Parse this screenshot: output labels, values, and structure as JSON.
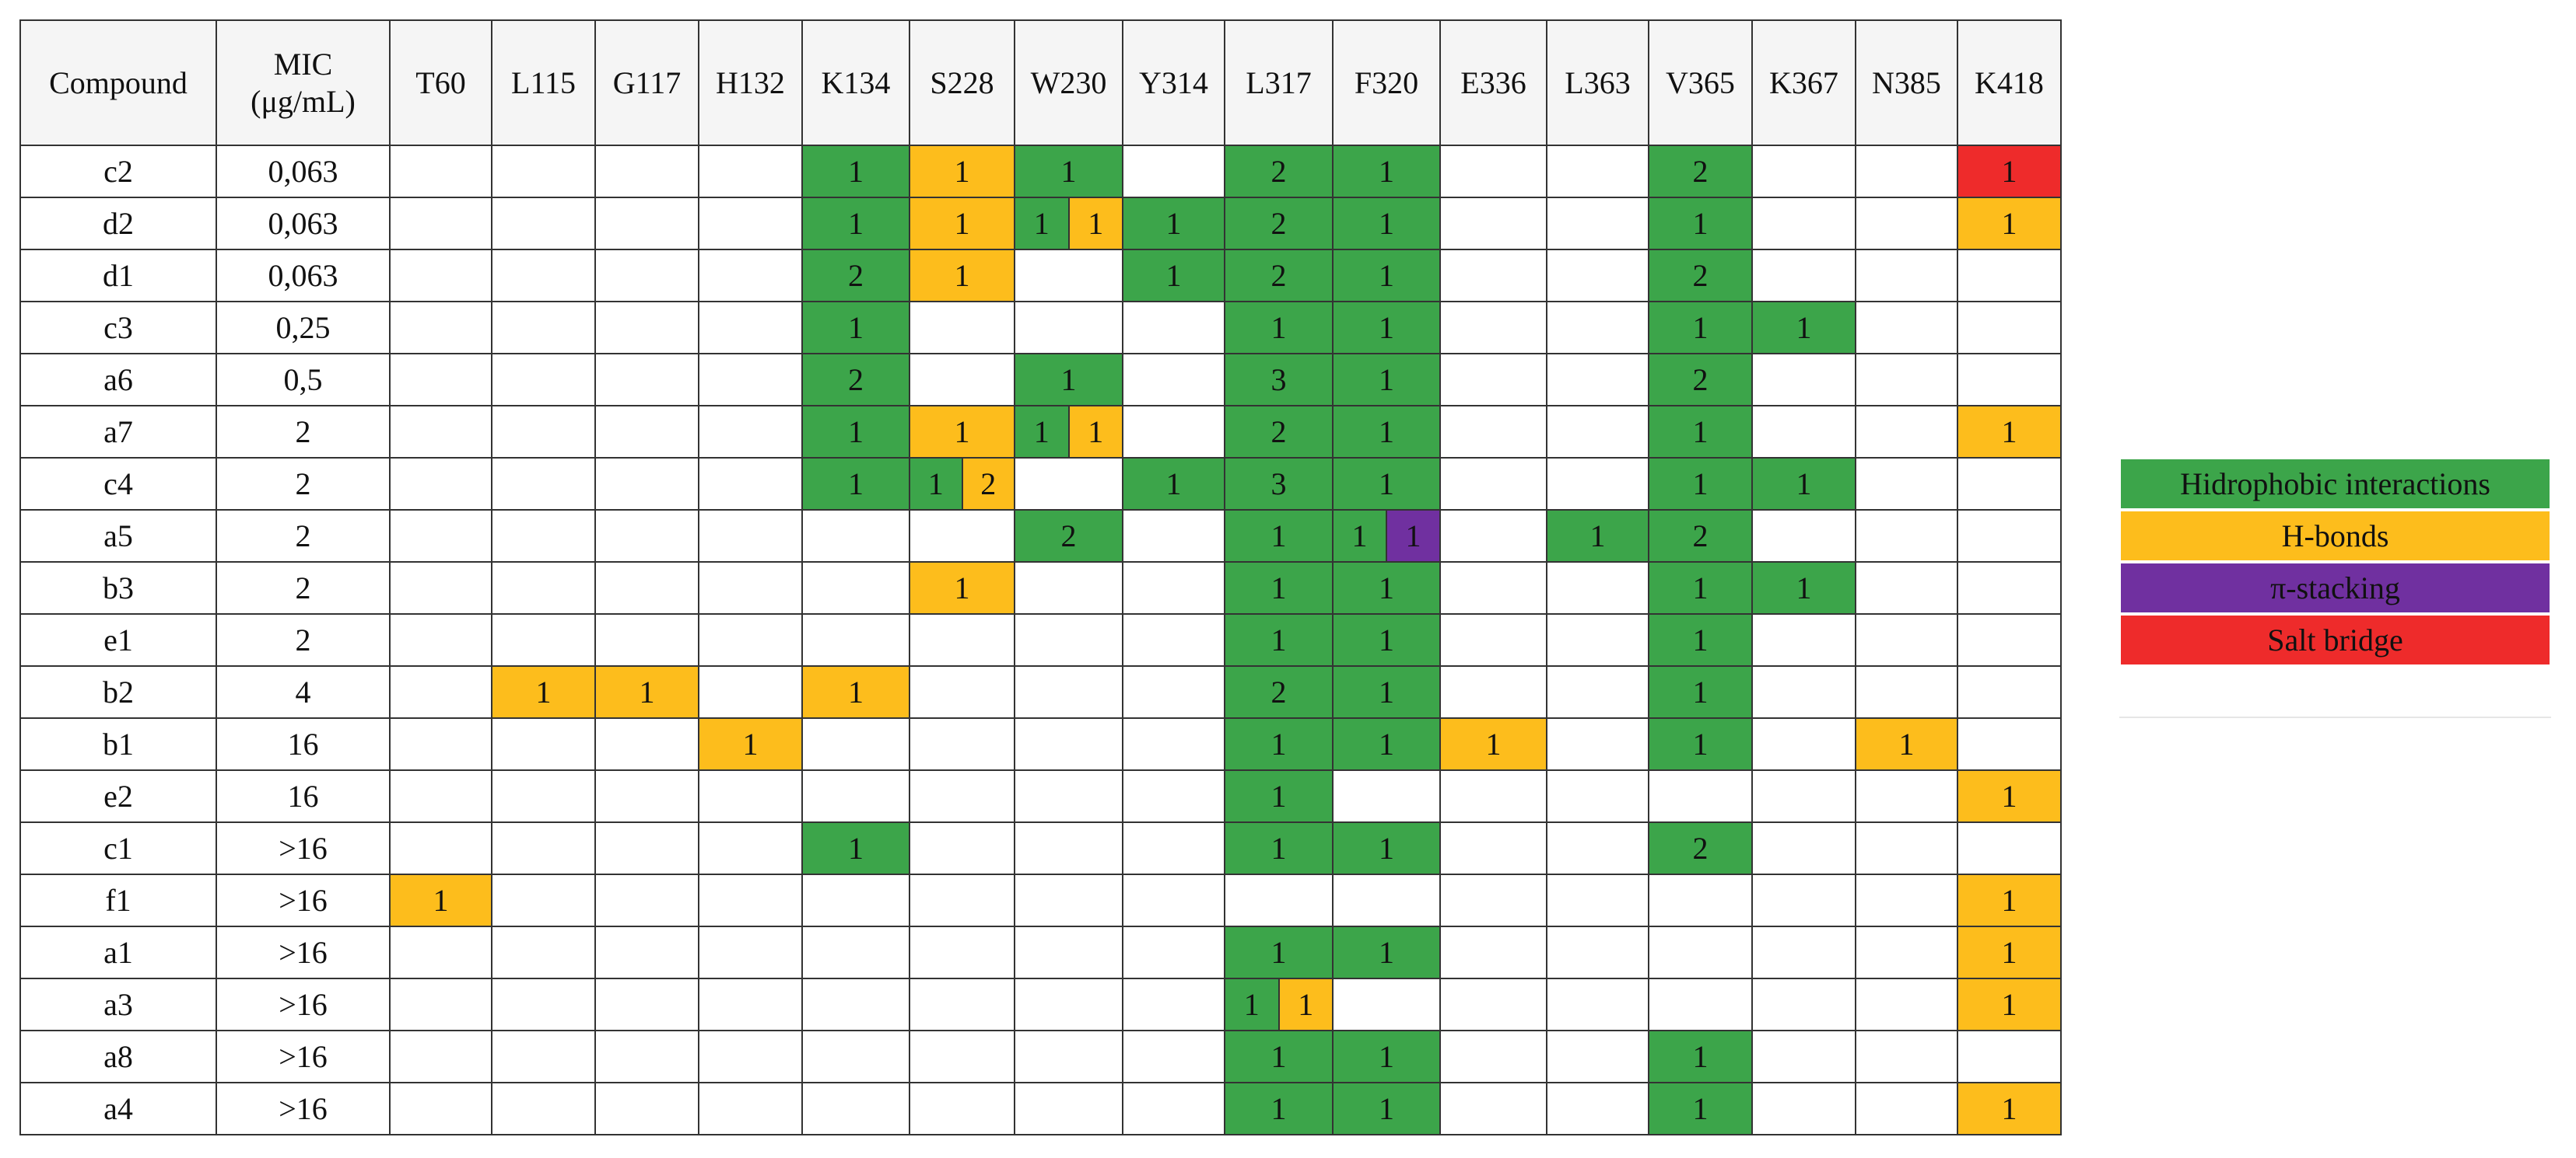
{
  "table": {
    "headers": [
      "Compound",
      "MIC (μg/mL)",
      "T60",
      "L115",
      "G117",
      "H132",
      "K134",
      "S228",
      "W230",
      "Y314",
      "L317",
      "F320",
      "E336",
      "L363",
      "V365",
      "K367",
      "N385",
      "K418"
    ],
    "rows": [
      {
        "compound": "c2",
        "mic": "0,063",
        "cells": [
          null,
          null,
          null,
          null,
          [
            [
              1,
              "#3ca54a"
            ]
          ],
          [
            [
              1,
              "#fdbd1c"
            ]
          ],
          [
            [
              1,
              "#3ca54a"
            ]
          ],
          null,
          [
            [
              2,
              "#3ca54a"
            ]
          ],
          [
            [
              1,
              "#3ca54a"
            ]
          ],
          null,
          null,
          [
            [
              2,
              "#3ca54a"
            ]
          ],
          null,
          null,
          [
            [
              1,
              "#ee2b2b"
            ]
          ]
        ]
      },
      {
        "compound": "d2",
        "mic": "0,063",
        "cells": [
          null,
          null,
          null,
          null,
          [
            [
              1,
              "#3ca54a"
            ]
          ],
          [
            [
              1,
              "#fdbd1c"
            ]
          ],
          [
            [
              1,
              "#3ca54a"
            ],
            [
              1,
              "#fdbd1c"
            ]
          ],
          [
            [
              1,
              "#3ca54a"
            ]
          ],
          [
            [
              2,
              "#3ca54a"
            ]
          ],
          [
            [
              1,
              "#3ca54a"
            ]
          ],
          null,
          null,
          [
            [
              1,
              "#3ca54a"
            ]
          ],
          null,
          null,
          [
            [
              1,
              "#fdbd1c"
            ]
          ]
        ]
      },
      {
        "compound": "d1",
        "mic": "0,063",
        "cells": [
          null,
          null,
          null,
          null,
          [
            [
              2,
              "#3ca54a"
            ]
          ],
          [
            [
              1,
              "#fdbd1c"
            ]
          ],
          null,
          [
            [
              1,
              "#3ca54a"
            ]
          ],
          [
            [
              2,
              "#3ca54a"
            ]
          ],
          [
            [
              1,
              "#3ca54a"
            ]
          ],
          null,
          null,
          [
            [
              2,
              "#3ca54a"
            ]
          ],
          null,
          null,
          null
        ]
      },
      {
        "compound": "c3",
        "mic": "0,25",
        "cells": [
          null,
          null,
          null,
          null,
          [
            [
              1,
              "#3ca54a"
            ]
          ],
          null,
          null,
          null,
          [
            [
              1,
              "#3ca54a"
            ]
          ],
          [
            [
              1,
              "#3ca54a"
            ]
          ],
          null,
          null,
          [
            [
              1,
              "#3ca54a"
            ]
          ],
          [
            [
              1,
              "#3ca54a"
            ]
          ],
          null,
          null
        ]
      },
      {
        "compound": "a6",
        "mic": "0,5",
        "cells": [
          null,
          null,
          null,
          null,
          [
            [
              2,
              "#3ca54a"
            ]
          ],
          null,
          [
            [
              1,
              "#3ca54a"
            ]
          ],
          null,
          [
            [
              3,
              "#3ca54a"
            ]
          ],
          [
            [
              1,
              "#3ca54a"
            ]
          ],
          null,
          null,
          [
            [
              2,
              "#3ca54a"
            ]
          ],
          null,
          null,
          null
        ]
      },
      {
        "compound": "a7",
        "mic": "2",
        "cells": [
          null,
          null,
          null,
          null,
          [
            [
              1,
              "#3ca54a"
            ]
          ],
          [
            [
              1,
              "#fdbd1c"
            ]
          ],
          [
            [
              1,
              "#3ca54a"
            ],
            [
              1,
              "#fdbd1c"
            ]
          ],
          null,
          [
            [
              2,
              "#3ca54a"
            ]
          ],
          [
            [
              1,
              "#3ca54a"
            ]
          ],
          null,
          null,
          [
            [
              1,
              "#3ca54a"
            ]
          ],
          null,
          null,
          [
            [
              1,
              "#fdbd1c"
            ]
          ]
        ]
      },
      {
        "compound": "c4",
        "mic": "2",
        "cells": [
          null,
          null,
          null,
          null,
          [
            [
              1,
              "#3ca54a"
            ]
          ],
          [
            [
              1,
              "#3ca54a"
            ],
            [
              2,
              "#fdbd1c"
            ]
          ],
          null,
          [
            [
              1,
              "#3ca54a"
            ]
          ],
          [
            [
              3,
              "#3ca54a"
            ]
          ],
          [
            [
              1,
              "#3ca54a"
            ]
          ],
          null,
          null,
          [
            [
              1,
              "#3ca54a"
            ]
          ],
          [
            [
              1,
              "#3ca54a"
            ]
          ],
          null,
          null
        ]
      },
      {
        "compound": "a5",
        "mic": "2",
        "cells": [
          null,
          null,
          null,
          null,
          null,
          null,
          [
            [
              2,
              "#3ca54a"
            ]
          ],
          null,
          [
            [
              1,
              "#3ca54a"
            ]
          ],
          [
            [
              1,
              "#3ca54a"
            ],
            [
              1,
              "#7030a0"
            ]
          ],
          null,
          [
            [
              1,
              "#3ca54a"
            ]
          ],
          [
            [
              2,
              "#3ca54a"
            ]
          ],
          null,
          null,
          null
        ]
      },
      {
        "compound": "b3",
        "mic": "2",
        "cells": [
          null,
          null,
          null,
          null,
          null,
          [
            [
              1,
              "#fdbd1c"
            ]
          ],
          null,
          null,
          [
            [
              1,
              "#3ca54a"
            ]
          ],
          [
            [
              1,
              "#3ca54a"
            ]
          ],
          null,
          null,
          [
            [
              1,
              "#3ca54a"
            ]
          ],
          [
            [
              1,
              "#3ca54a"
            ]
          ],
          null,
          null
        ]
      },
      {
        "compound": "e1",
        "mic": "2",
        "cells": [
          null,
          null,
          null,
          null,
          null,
          null,
          null,
          null,
          [
            [
              1,
              "#3ca54a"
            ]
          ],
          [
            [
              1,
              "#3ca54a"
            ]
          ],
          null,
          null,
          [
            [
              1,
              "#3ca54a"
            ]
          ],
          null,
          null,
          null
        ]
      },
      {
        "compound": "b2",
        "mic": "4",
        "cells": [
          null,
          [
            [
              1,
              "#fdbd1c"
            ]
          ],
          [
            [
              1,
              "#fdbd1c"
            ]
          ],
          null,
          [
            [
              1,
              "#fdbd1c"
            ]
          ],
          null,
          null,
          null,
          [
            [
              2,
              "#3ca54a"
            ]
          ],
          [
            [
              1,
              "#3ca54a"
            ]
          ],
          null,
          null,
          [
            [
              1,
              "#3ca54a"
            ]
          ],
          null,
          null,
          null
        ]
      },
      {
        "compound": "b1",
        "mic": "16",
        "cells": [
          null,
          null,
          null,
          [
            [
              1,
              "#fdbd1c"
            ]
          ],
          null,
          null,
          null,
          null,
          [
            [
              1,
              "#3ca54a"
            ]
          ],
          [
            [
              1,
              "#3ca54a"
            ]
          ],
          [
            [
              1,
              "#fdbd1c"
            ]
          ],
          null,
          [
            [
              1,
              "#3ca54a"
            ]
          ],
          null,
          [
            [
              1,
              "#fdbd1c"
            ]
          ],
          null
        ]
      },
      {
        "compound": "e2",
        "mic": "16",
        "cells": [
          null,
          null,
          null,
          null,
          null,
          null,
          null,
          null,
          [
            [
              1,
              "#3ca54a"
            ]
          ],
          null,
          null,
          null,
          null,
          null,
          null,
          [
            [
              1,
              "#fdbd1c"
            ]
          ]
        ]
      },
      {
        "compound": "c1",
        "mic": ">16",
        "cells": [
          null,
          null,
          null,
          null,
          [
            [
              1,
              "#3ca54a"
            ]
          ],
          null,
          null,
          null,
          [
            [
              1,
              "#3ca54a"
            ]
          ],
          [
            [
              1,
              "#3ca54a"
            ]
          ],
          null,
          null,
          [
            [
              2,
              "#3ca54a"
            ]
          ],
          null,
          null,
          null
        ]
      },
      {
        "compound": "f1",
        "mic": ">16",
        "cells": [
          [
            [
              1,
              "#fdbd1c"
            ]
          ],
          null,
          null,
          null,
          null,
          null,
          null,
          null,
          null,
          null,
          null,
          null,
          null,
          null,
          null,
          [
            [
              1,
              "#fdbd1c"
            ]
          ]
        ]
      },
      {
        "compound": "a1",
        "mic": ">16",
        "cells": [
          null,
          null,
          null,
          null,
          null,
          null,
          null,
          null,
          [
            [
              1,
              "#3ca54a"
            ]
          ],
          [
            [
              1,
              "#3ca54a"
            ]
          ],
          null,
          null,
          null,
          null,
          null,
          [
            [
              1,
              "#fdbd1c"
            ]
          ]
        ]
      },
      {
        "compound": "a3",
        "mic": ">16",
        "cells": [
          null,
          null,
          null,
          null,
          null,
          null,
          null,
          null,
          [
            [
              1,
              "#3ca54a"
            ],
            [
              1,
              "#fdbd1c"
            ]
          ],
          null,
          null,
          null,
          null,
          null,
          null,
          [
            [
              1,
              "#fdbd1c"
            ]
          ]
        ]
      },
      {
        "compound": "a8",
        "mic": ">16",
        "cells": [
          null,
          null,
          null,
          null,
          null,
          null,
          null,
          null,
          [
            [
              1,
              "#3ca54a"
            ]
          ],
          [
            [
              1,
              "#3ca54a"
            ]
          ],
          null,
          null,
          [
            [
              1,
              "#3ca54a"
            ]
          ],
          null,
          null,
          null
        ]
      },
      {
        "compound": "a4",
        "mic": ">16",
        "cells": [
          null,
          null,
          null,
          null,
          null,
          null,
          null,
          null,
          [
            [
              1,
              "#3ca54a"
            ]
          ],
          [
            [
              1,
              "#3ca54a"
            ]
          ],
          null,
          null,
          [
            [
              1,
              "#3ca54a"
            ]
          ],
          null,
          null,
          [
            [
              1,
              "#fdbd1c"
            ]
          ]
        ]
      }
    ]
  },
  "legend": [
    {
      "label": "Hidrophobic interactions",
      "color": "#3ca54a"
    },
    {
      "label": "H-bonds",
      "color": "#fdbd1c"
    },
    {
      "label": "π-stacking",
      "color": "#7030a0"
    },
    {
      "label": "Salt bridge",
      "color": "#ee2b2b"
    }
  ]
}
